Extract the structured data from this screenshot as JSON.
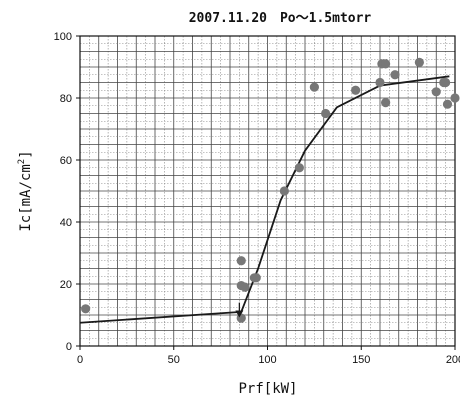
{
  "chart_data": {
    "type": "scatter",
    "title": "2007.11.20　Po〜1.5mtorr",
    "xlabel": "Prf[kW]",
    "ylabel_main": "Ic[mA/cm",
    "ylabel_sup": "2",
    "ylabel_end": "]",
    "xlim": [
      0,
      200
    ],
    "ylim": [
      0,
      100
    ],
    "x_ticks": [
      0,
      50,
      100,
      150,
      200
    ],
    "x_tick_labels": [
      "0",
      "50",
      "100",
      "150",
      "200"
    ],
    "y_ticks": [
      0,
      20,
      40,
      60,
      80,
      100
    ],
    "y_tick_labels": [
      "0",
      "20",
      "40",
      "60",
      "80",
      "100"
    ],
    "grid": true,
    "grid_major_x_step": 10,
    "grid_major_y_step": 5,
    "grid_minor_x_step": 5,
    "grid_minor_y_step": 2.5,
    "point_color": "#777777",
    "line_color": "#1a1a1a",
    "series": [
      {
        "kind": "points",
        "x": [
          3,
          86,
          86,
          86,
          88,
          93,
          94,
          109,
          117,
          125,
          131,
          147,
          160,
          161,
          163,
          163,
          168,
          181,
          190,
          194,
          195,
          196,
          200
        ],
        "y": [
          12,
          27.5,
          19.5,
          9,
          19,
          22,
          22,
          50,
          57.5,
          83.5,
          75,
          82.5,
          85,
          91,
          91,
          78.5,
          87.5,
          91.5,
          82,
          85,
          85,
          78,
          80
        ]
      },
      {
        "kind": "trend",
        "x": [
          0,
          86,
          95,
          107,
          120,
          137,
          160,
          197
        ],
        "y": [
          7.5,
          11,
          25,
          47,
          63,
          77,
          84,
          87
        ]
      },
      {
        "kind": "arrow",
        "x": [
          85,
          85
        ],
        "y": [
          14,
          9.5
        ]
      }
    ]
  }
}
